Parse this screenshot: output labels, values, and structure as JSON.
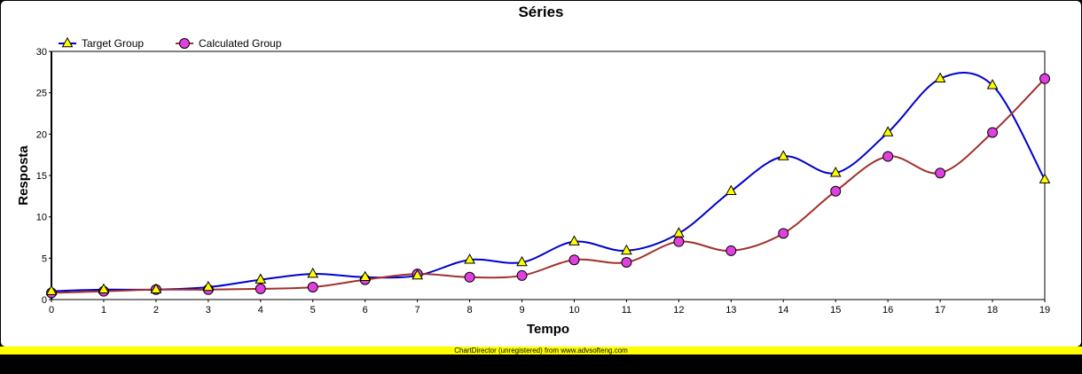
{
  "footer_text": "ChartDirector (unregistered) from www.advsofteng.com",
  "colors": {
    "target": "#0000cc",
    "calculated": "#a0302a",
    "triangle_fill": "#ffff00",
    "circle_fill": "#e040e0"
  },
  "chart_data": {
    "type": "line",
    "title": "Séries",
    "xlabel": "Tempo",
    "ylabel": "Resposta",
    "xlim": [
      0,
      19
    ],
    "ylim": [
      0,
      30
    ],
    "x_ticks": [
      0,
      1,
      2,
      3,
      4,
      5,
      6,
      7,
      8,
      9,
      10,
      11,
      12,
      13,
      14,
      15,
      16,
      17,
      18,
      19
    ],
    "y_ticks": [
      0,
      5,
      10,
      15,
      20,
      25,
      30
    ],
    "legend_position": "top-left",
    "x": [
      0,
      1,
      2,
      3,
      4,
      5,
      6,
      7,
      8,
      9,
      10,
      11,
      12,
      13,
      14,
      15,
      16,
      17,
      18,
      19
    ],
    "series": [
      {
        "name": "Target Group",
        "marker": "triangle",
        "values": [
          1.0,
          1.2,
          1.2,
          1.5,
          2.4,
          3.1,
          2.7,
          2.9,
          4.8,
          4.5,
          7.0,
          5.9,
          8.0,
          13.1,
          17.3,
          15.3,
          20.2,
          26.7,
          25.9,
          14.5
        ]
      },
      {
        "name": "Calculated Group",
        "marker": "circle",
        "values": [
          0.8,
          1.0,
          1.2,
          1.2,
          1.3,
          1.5,
          2.4,
          3.1,
          2.7,
          2.9,
          4.8,
          4.5,
          7.0,
          5.9,
          8.0,
          13.1,
          17.3,
          15.3,
          20.2,
          26.7
        ]
      }
    ]
  }
}
